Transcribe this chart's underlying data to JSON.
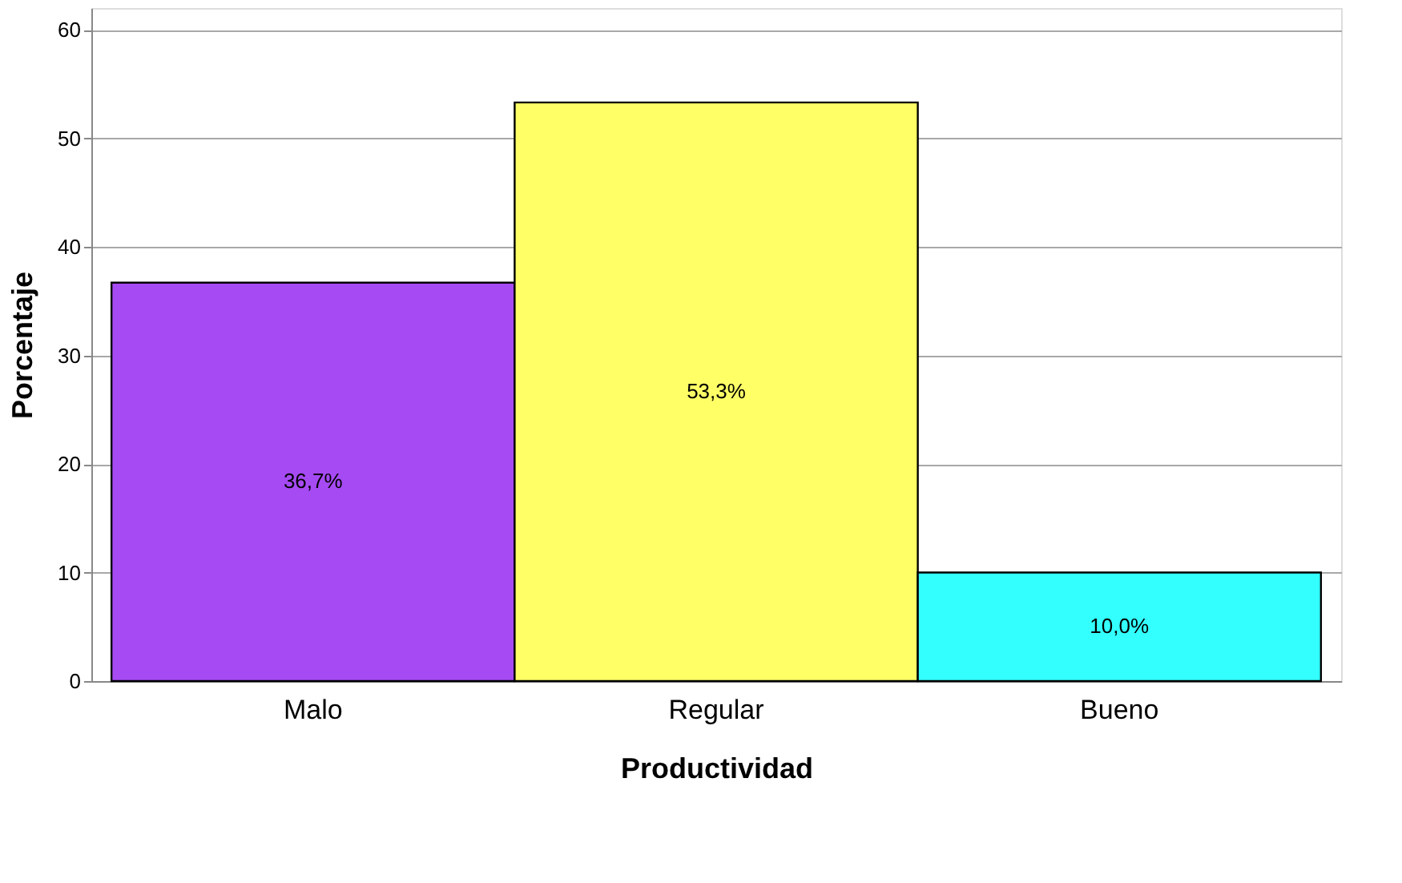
{
  "chart_data": {
    "type": "bar",
    "xlabel": "Productividad",
    "ylabel": "Porcentaje",
    "categories": [
      "Malo",
      "Regular",
      "Bueno"
    ],
    "values": [
      36.7,
      53.3,
      10.0
    ],
    "colors": [
      "#a64af4",
      "#ffff66",
      "#33ffff"
    ],
    "value_labels": [
      "36,7%",
      "53,3%",
      "10,0%"
    ],
    "ylim": [
      0,
      62
    ],
    "yticks": [
      0,
      10,
      20,
      30,
      40,
      50,
      60
    ],
    "grid": "y"
  }
}
